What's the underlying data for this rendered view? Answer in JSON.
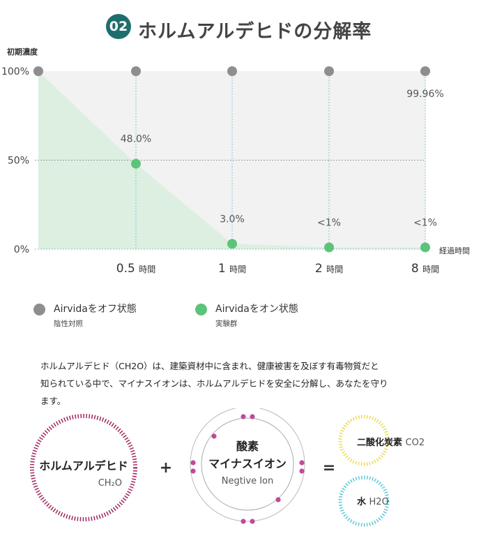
{
  "title": {
    "badge": "02",
    "text": "ホルムアルデヒドの分解率"
  },
  "chart_data": {
    "type": "line",
    "title": "ホルムアルデヒドの分解率",
    "ylabel": "初期濃度",
    "xlabel": "経過時間",
    "y_ticks": [
      "100%",
      "50%",
      "0%"
    ],
    "x_ticks": [
      {
        "value": "0.5",
        "unit": "時間"
      },
      {
        "value": "1",
        "unit": "時間"
      },
      {
        "value": "2",
        "unit": "時間"
      },
      {
        "value": "8",
        "unit": "時間"
      }
    ],
    "x": [
      0,
      0.5,
      1,
      2,
      8
    ],
    "ylim": [
      0,
      100
    ],
    "series": [
      {
        "name": "Airvidaをオフ状態",
        "values": [
          100,
          100,
          100,
          100,
          100
        ],
        "color": "#8e8e8e",
        "labels": [
          "",
          "",
          "",
          "",
          "99.96%"
        ]
      },
      {
        "name": "Airvidaをオン状態",
        "values": [
          100,
          48,
          3,
          1,
          1
        ],
        "color": "#5cc47a",
        "labels": [
          "",
          "48.0%",
          "3.0%",
          "<1%",
          "<1%"
        ]
      }
    ],
    "grid": true
  },
  "legend": [
    {
      "label": "Airvidaをオフ状態",
      "sub": "陰性対照",
      "color": "#8e8e8e"
    },
    {
      "label": "Airvidaをオン状態",
      "sub": "実験群",
      "color": "#5cc47a"
    }
  ],
  "description": [
    "ホルムアルデヒド（CH2O）は、建築資材中に含まれ、健康被害を及ぼす有毒物質だと",
    "知られている中で、マイナスイオンは、ホルムアルデヒドを安全に分解し、あなたを守り",
    "ます。"
  ],
  "diagram": {
    "formaldehyde": {
      "label": "ホルムアルデヒド",
      "formula": "CH₂O",
      "color": "#a0245e"
    },
    "plus": "+",
    "ion": {
      "label1": "酸素",
      "label2": "マイナスイオン",
      "label3": "Negtive Ion",
      "color": "#c04a9a"
    },
    "equals": "=",
    "co2": {
      "label": "二酸化炭素",
      "formula": "CO2",
      "color": "#e8dc5a"
    },
    "water": {
      "label": "水",
      "formula": "H2O",
      "color": "#5cc8d8"
    }
  }
}
